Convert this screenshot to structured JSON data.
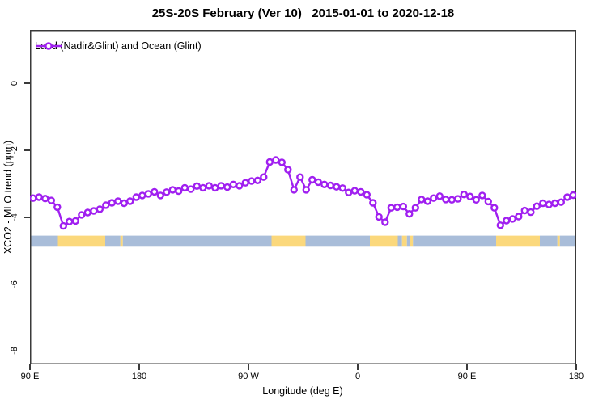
{
  "title": "25S-20S February (Ver 10)   2015-01-01 to 2020-12-18",
  "legend": {
    "label": "Land (Nadir&Glint) and Ocean (Glint)"
  },
  "colors": {
    "series": "#A020F0",
    "land": "#FBD87C",
    "ocean": "#A9BDD9",
    "axis": "#3A3A3A",
    "text": "#000000"
  },
  "chart_data": {
    "type": "line",
    "title": "25S-20S February (Ver 10)   2015-01-01 to 2020-12-18",
    "xlabel": "Longitude (deg E)",
    "ylabel": "XCO2 - MLO trend (ppm)",
    "xlim": [
      90,
      540
    ],
    "ylim": [
      -8.4,
      1.6
    ],
    "grid": false,
    "legend_position": "top-left",
    "x_ticks": [
      {
        "pos": 90,
        "label": "90 E"
      },
      {
        "pos": 180,
        "label": "180"
      },
      {
        "pos": 270,
        "label": "90 W"
      },
      {
        "pos": 360,
        "label": "0"
      },
      {
        "pos": 450,
        "label": "90 E"
      },
      {
        "pos": 540,
        "label": "180"
      }
    ],
    "y_ticks": [
      {
        "pos": 0,
        "label": "0"
      },
      {
        "pos": -2,
        "label": "-2"
      },
      {
        "pos": -4,
        "label": "-4"
      },
      {
        "pos": -6,
        "label": "-6"
      },
      {
        "pos": -8,
        "label": "-8"
      }
    ],
    "x_start": 92.5,
    "x_step": 5,
    "series": [
      {
        "name": "Land (Nadir&Glint) and Ocean (Glint)",
        "marker": "open-circle",
        "color": "#A020F0",
        "values": [
          -3.43,
          -3.4,
          -3.44,
          -3.5,
          -3.7,
          -4.26,
          -4.13,
          -4.11,
          -3.93,
          -3.86,
          -3.81,
          -3.76,
          -3.64,
          -3.57,
          -3.52,
          -3.58,
          -3.52,
          -3.4,
          -3.35,
          -3.3,
          -3.24,
          -3.35,
          -3.25,
          -3.18,
          -3.22,
          -3.12,
          -3.16,
          -3.07,
          -3.12,
          -3.06,
          -3.12,
          -3.06,
          -3.1,
          -3.02,
          -3.06,
          -2.97,
          -2.92,
          -2.9,
          -2.8,
          -2.35,
          -2.29,
          -2.36,
          -2.58,
          -3.18,
          -2.8,
          -3.18,
          -2.88,
          -2.95,
          -3.02,
          -3.05,
          -3.09,
          -3.13,
          -3.26,
          -3.21,
          -3.24,
          -3.33,
          -3.57,
          -3.99,
          -4.15,
          -3.72,
          -3.7,
          -3.68,
          -3.9,
          -3.72,
          -3.47,
          -3.52,
          -3.43,
          -3.37,
          -3.47,
          -3.48,
          -3.45,
          -3.32,
          -3.38,
          -3.48,
          -3.35,
          -3.53,
          -3.72,
          -4.24,
          -4.1,
          -4.05,
          -3.98,
          -3.8,
          -3.85,
          -3.67,
          -3.58,
          -3.62,
          -3.58,
          -3.55,
          -3.4,
          -3.34
        ]
      }
    ],
    "surface_band": {
      "y_top": -4.55,
      "y_bottom": -4.88,
      "segments": [
        {
          "from": 90,
          "to": 113,
          "type": "ocean"
        },
        {
          "from": 113,
          "to": 152,
          "type": "land"
        },
        {
          "from": 152,
          "to": 164.5,
          "type": "ocean"
        },
        {
          "from": 164.5,
          "to": 166.5,
          "type": "land"
        },
        {
          "from": 166.5,
          "to": 289,
          "type": "ocean"
        },
        {
          "from": 289,
          "to": 317,
          "type": "land"
        },
        {
          "from": 317,
          "to": 370,
          "type": "ocean"
        },
        {
          "from": 370,
          "to": 393,
          "type": "land"
        },
        {
          "from": 393,
          "to": 396.5,
          "type": "ocean"
        },
        {
          "from": 396.5,
          "to": 400.5,
          "type": "land"
        },
        {
          "from": 400.5,
          "to": 403,
          "type": "ocean"
        },
        {
          "from": 403,
          "to": 405.5,
          "type": "land"
        },
        {
          "from": 405.5,
          "to": 474,
          "type": "ocean"
        },
        {
          "from": 474,
          "to": 510,
          "type": "land"
        },
        {
          "from": 510,
          "to": 524.5,
          "type": "ocean"
        },
        {
          "from": 524.5,
          "to": 526.5,
          "type": "land"
        },
        {
          "from": 526.5,
          "to": 540,
          "type": "ocean"
        }
      ]
    }
  }
}
